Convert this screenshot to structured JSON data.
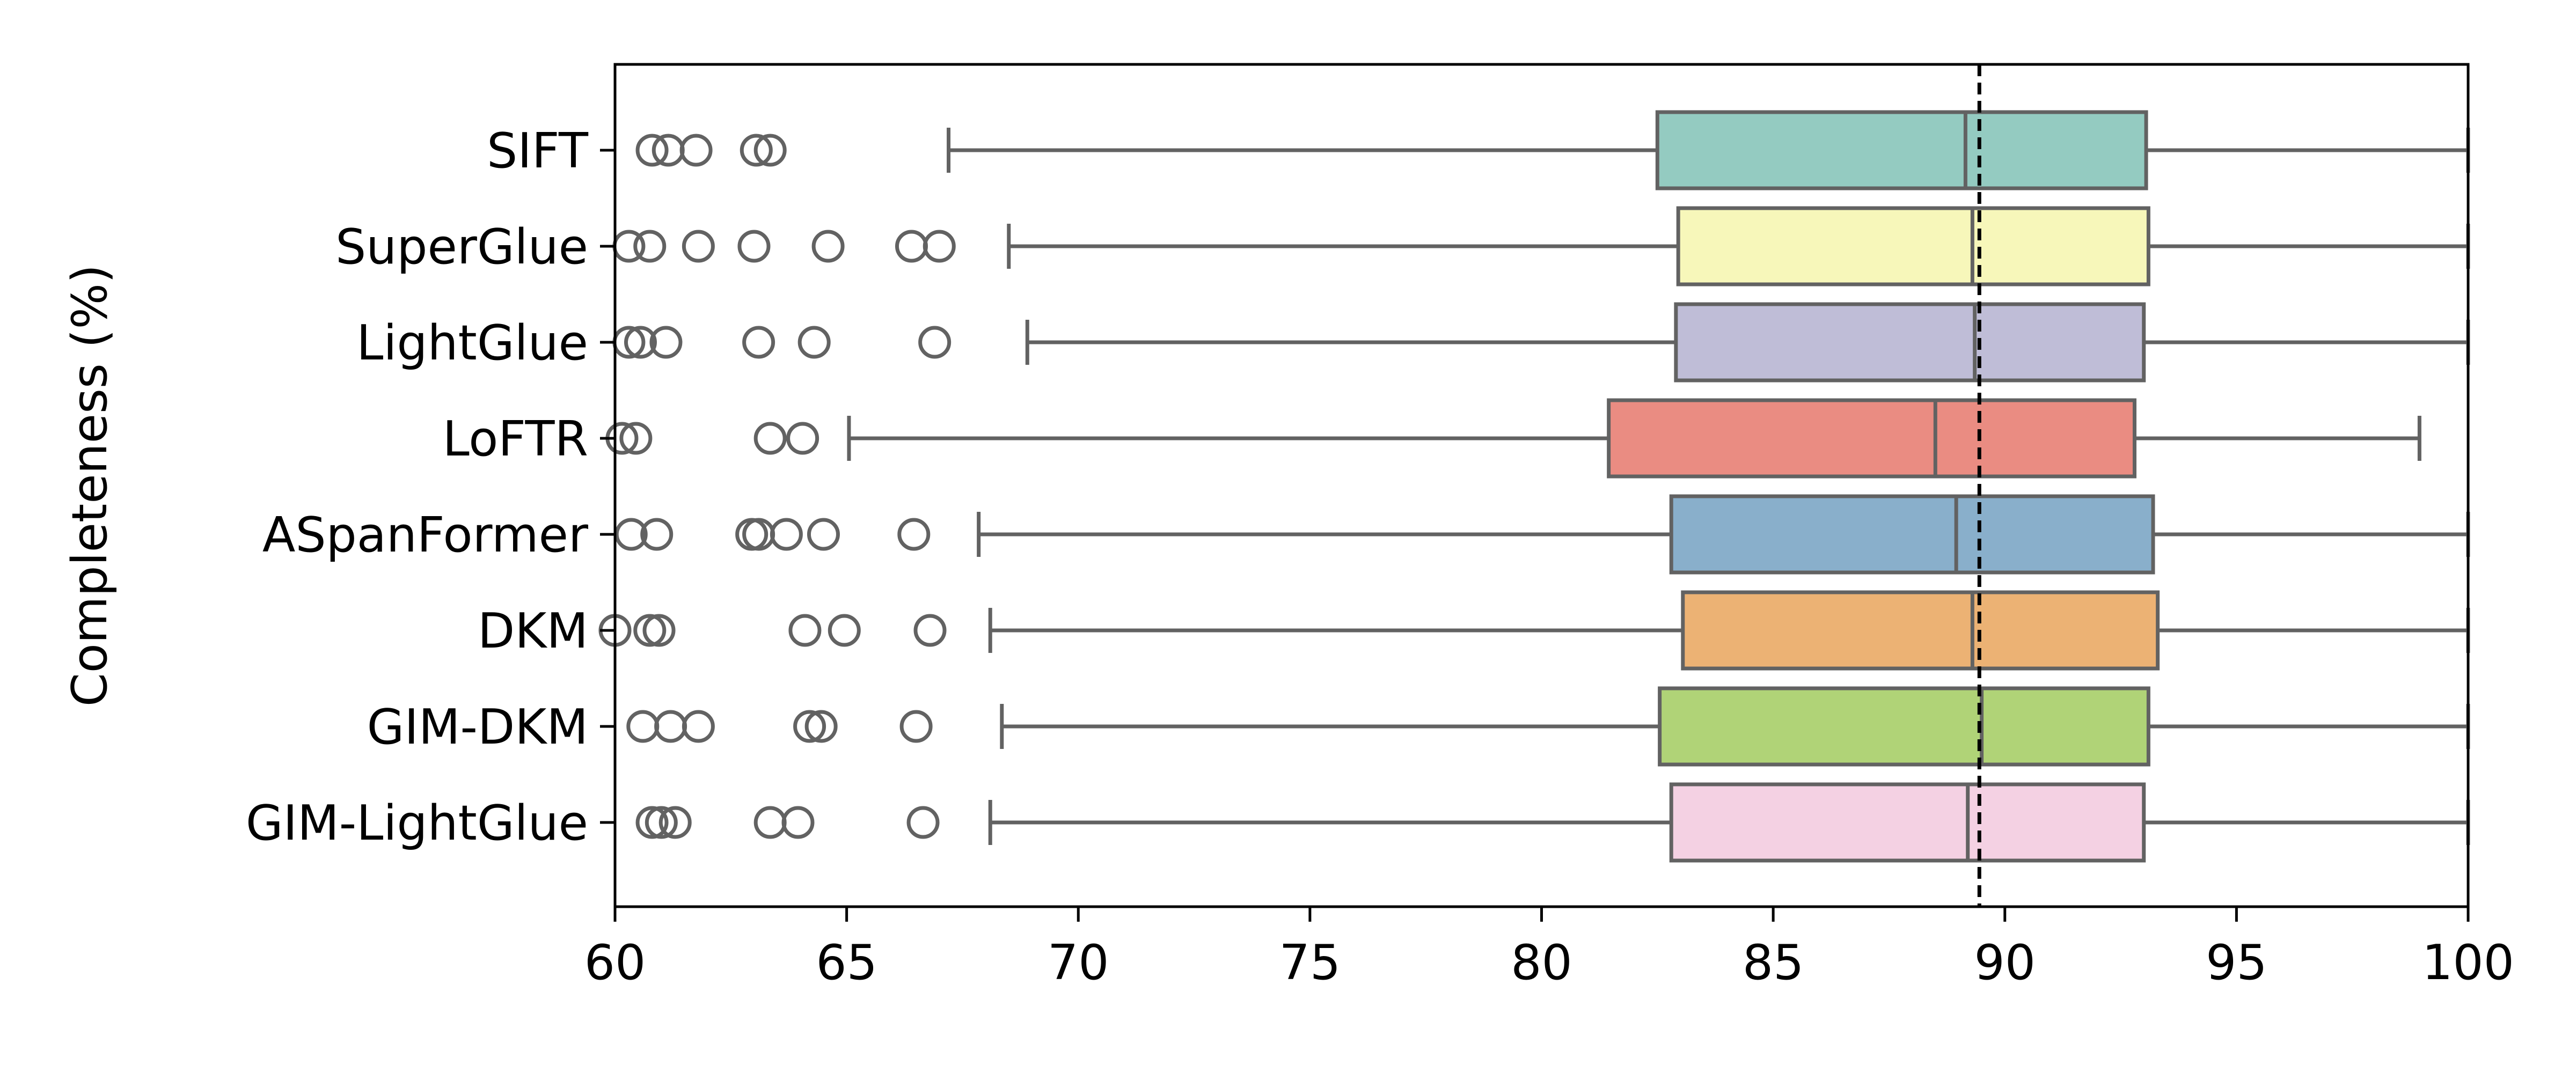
{
  "chart_data": {
    "type": "box",
    "orientation": "horizontal",
    "title": "",
    "xlabel": "",
    "ylabel": "Completeness (%)",
    "xlim": [
      60,
      100
    ],
    "xticks": [
      60,
      65,
      70,
      75,
      80,
      85,
      90,
      95,
      100
    ],
    "grid": false,
    "reference_line": {
      "x": 89.45,
      "style": "dashed",
      "color": "#000000"
    },
    "whisker_color": "#626262",
    "series": [
      {
        "name": "SIFT",
        "color": "#94cbc1",
        "whisker_low": 67.2,
        "q1": 82.5,
        "median": 89.15,
        "q3": 93.05,
        "whisker_high": 100,
        "outliers": [
          60.8,
          61.15,
          61.75,
          63.05,
          63.35
        ]
      },
      {
        "name": "SuperGlue",
        "color": "#f7f7ba",
        "whisker_low": 68.5,
        "q1": 82.95,
        "median": 89.3,
        "q3": 93.1,
        "whisker_high": 100,
        "outliers": [
          60.3,
          60.75,
          61.8,
          63.0,
          64.6,
          66.4,
          67.0
        ]
      },
      {
        "name": "LightGlue",
        "color": "#bfbdd7",
        "whisker_low": 68.9,
        "q1": 82.9,
        "median": 89.35,
        "q3": 93.0,
        "whisker_high": 100,
        "outliers": [
          60.3,
          60.55,
          61.1,
          63.1,
          64.3,
          66.9
        ]
      },
      {
        "name": "LoFTR",
        "color": "#ea8c82",
        "whisker_low": 65.05,
        "q1": 81.45,
        "median": 88.5,
        "q3": 92.8,
        "whisker_high": 98.95,
        "outliers": [
          60.15,
          60.45,
          63.35,
          64.05
        ]
      },
      {
        "name": "ASpanFormer",
        "color": "#89afcb",
        "whisker_low": 67.85,
        "q1": 82.8,
        "median": 88.95,
        "q3": 93.2,
        "whisker_high": 100,
        "outliers": [
          60.35,
          60.9,
          62.95,
          63.1,
          63.7,
          64.5,
          66.45
        ]
      },
      {
        "name": "DKM",
        "color": "#ecb274",
        "whisker_low": 68.1,
        "q1": 83.05,
        "median": 89.3,
        "q3": 93.3,
        "whisker_high": 100,
        "outliers": [
          60.0,
          60.75,
          60.95,
          64.1,
          64.95,
          66.8
        ]
      },
      {
        "name": "GIM-DKM",
        "color": "#b0d377",
        "whisker_low": 68.35,
        "q1": 82.55,
        "median": 89.5,
        "q3": 93.1,
        "whisker_high": 100,
        "outliers": [
          60.6,
          61.2,
          61.8,
          64.2,
          64.45,
          66.5
        ]
      },
      {
        "name": "GIM-LightGlue",
        "color": "#f4d1e3",
        "whisker_low": 68.1,
        "q1": 82.8,
        "median": 89.2,
        "q3": 93.0,
        "whisker_high": 100,
        "outliers": [
          60.8,
          61.0,
          61.3,
          63.35,
          63.95,
          66.65
        ]
      }
    ]
  }
}
